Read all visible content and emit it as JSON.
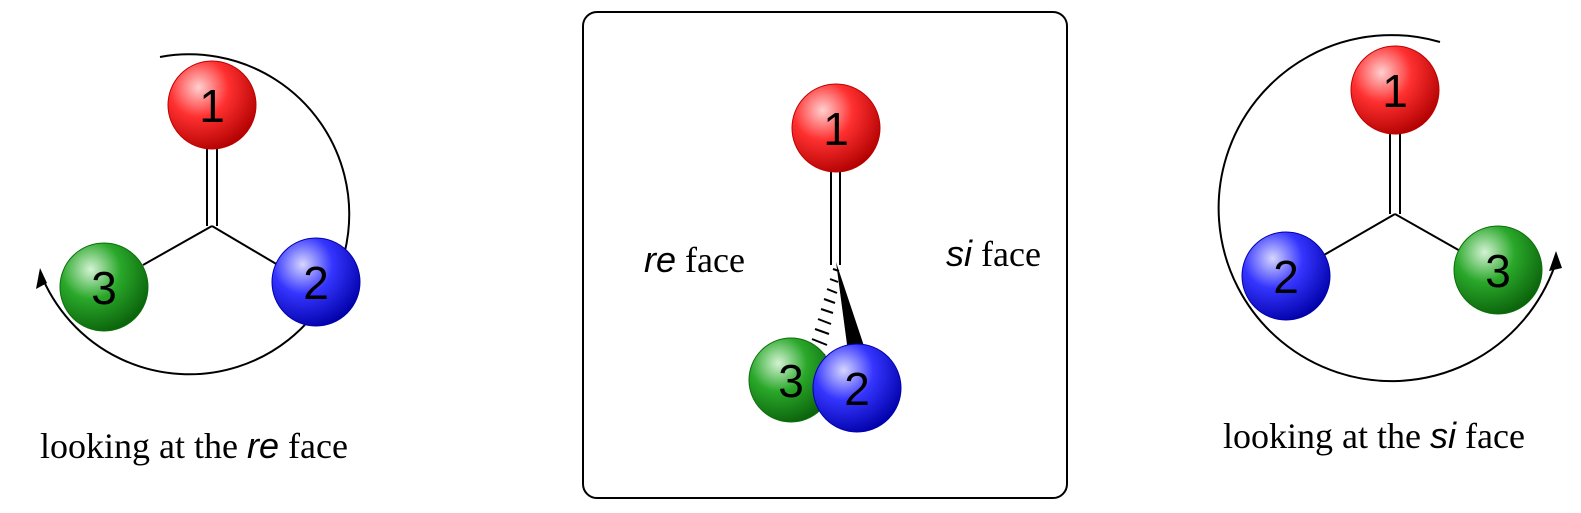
{
  "colors": {
    "atom_1": "#ff2020",
    "atom_2": "#2020ff",
    "atom_3": "#1e9a1e",
    "line": "#000000"
  },
  "left_panel": {
    "atom_1_label": "1",
    "atom_2_label": "2",
    "atom_3_label": "3",
    "caption_prefix": "looking at the ",
    "caption_italic": "re",
    "caption_suffix": " face"
  },
  "center_panel": {
    "atom_1_label": "1",
    "atom_2_label": "2",
    "atom_3_label": "3",
    "re_italic": "re",
    "re_suffix": " face",
    "si_italic": "si",
    "si_suffix": " face"
  },
  "right_panel": {
    "atom_1_label": "1",
    "atom_2_label": "2",
    "atom_3_label": "3",
    "caption_prefix": "looking at the ",
    "caption_italic": "si",
    "caption_suffix": " face"
  }
}
